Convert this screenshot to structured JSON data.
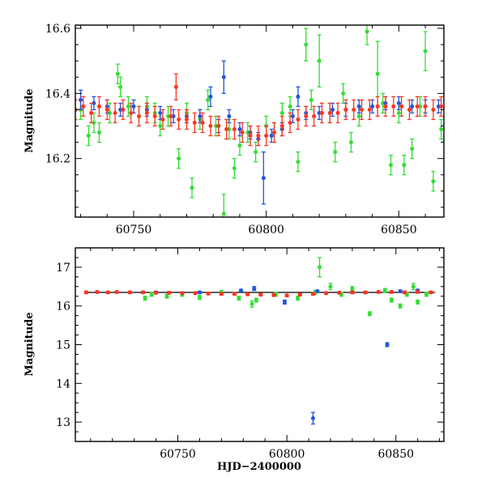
{
  "chart_data": [
    {
      "type": "scatter",
      "xlabel": "",
      "ylabel": "Magnitude",
      "xlim": [
        60728,
        60867
      ],
      "ylim": [
        16.61,
        16.02
      ],
      "x_ticks": [
        60750,
        60800,
        60850
      ],
      "x_tick_labels": [
        "60750",
        "60800",
        "60850"
      ],
      "y_ticks": [
        16.2,
        16.4,
        16.6
      ],
      "y_tick_labels": [
        "16.2",
        "16.4",
        "16.6"
      ],
      "y_inverted": true,
      "series": [
        {
          "color": "#33dd33",
          "points": [
            [
              60730,
              16.35,
              0.03
            ],
            [
              60733,
              16.27,
              0.03
            ],
            [
              60735,
              16.31,
              0.03
            ],
            [
              60737,
              16.28,
              0.03
            ],
            [
              60741,
              16.34,
              0.03
            ],
            [
              60744,
              16.46,
              0.03
            ],
            [
              60745,
              16.42,
              0.03
            ],
            [
              60748,
              16.36,
              0.03
            ],
            [
              60752,
              16.33,
              0.03
            ],
            [
              60755,
              16.36,
              0.03
            ],
            [
              60758,
              16.34,
              0.03
            ],
            [
              60760,
              16.3,
              0.03
            ],
            [
              60763,
              16.33,
              0.03
            ],
            [
              60767,
              16.2,
              0.03
            ],
            [
              60770,
              16.34,
              0.03
            ],
            [
              60772,
              16.11,
              0.03
            ],
            [
              60775,
              16.32,
              0.03
            ],
            [
              60778,
              16.38,
              0.03
            ],
            [
              60781,
              16.3,
              0.03
            ],
            [
              60784,
              16.03,
              0.06
            ],
            [
              60786,
              16.29,
              0.03
            ],
            [
              60788,
              16.17,
              0.03
            ],
            [
              60790,
              16.24,
              0.03
            ],
            [
              60793,
              16.28,
              0.03
            ],
            [
              60796,
              16.22,
              0.03
            ],
            [
              60800,
              16.3,
              0.03
            ],
            [
              60803,
              16.28,
              0.03
            ],
            [
              60806,
              16.34,
              0.03
            ],
            [
              60809,
              16.36,
              0.03
            ],
            [
              60812,
              16.19,
              0.03
            ],
            [
              60815,
              16.55,
              0.05
            ],
            [
              60817,
              16.38,
              0.03
            ],
            [
              60820,
              16.5,
              0.08
            ],
            [
              60824,
              16.34,
              0.03
            ],
            [
              60826,
              16.22,
              0.03
            ],
            [
              60829,
              16.4,
              0.03
            ],
            [
              60832,
              16.25,
              0.03
            ],
            [
              60835,
              16.33,
              0.03
            ],
            [
              60838,
              16.59,
              0.04
            ],
            [
              60842,
              16.46,
              0.1
            ],
            [
              60844,
              16.37,
              0.03
            ],
            [
              60847,
              16.18,
              0.03
            ],
            [
              60850,
              16.34,
              0.03
            ],
            [
              60852,
              16.18,
              0.03
            ],
            [
              60855,
              16.23,
              0.03
            ],
            [
              60858,
              16.36,
              0.03
            ],
            [
              60860,
              16.53,
              0.06
            ],
            [
              60863,
              16.13,
              0.03
            ],
            [
              60866,
              16.29,
              0.03
            ]
          ]
        },
        {
          "color": "#2255dd",
          "points": [
            [
              60730,
              16.38,
              0.03
            ],
            [
              60735,
              16.37,
              0.02
            ],
            [
              60740,
              16.36,
              0.02
            ],
            [
              60745,
              16.35,
              0.02
            ],
            [
              60750,
              16.36,
              0.02
            ],
            [
              60755,
              16.35,
              0.02
            ],
            [
              60760,
              16.34,
              0.02
            ],
            [
              60765,
              16.33,
              0.02
            ],
            [
              60770,
              16.33,
              0.02
            ],
            [
              60775,
              16.33,
              0.02
            ],
            [
              60779,
              16.39,
              0.03
            ],
            [
              60782,
              16.3,
              0.02
            ],
            [
              60784,
              16.45,
              0.05
            ],
            [
              60786,
              16.33,
              0.02
            ],
            [
              60790,
              16.29,
              0.02
            ],
            [
              60794,
              16.28,
              0.02
            ],
            [
              60797,
              16.26,
              0.02
            ],
            [
              60799,
              16.14,
              0.08
            ],
            [
              60802,
              16.27,
              0.02
            ],
            [
              60806,
              16.29,
              0.02
            ],
            [
              60810,
              16.33,
              0.02
            ],
            [
              60812,
              16.39,
              0.03
            ],
            [
              60815,
              16.34,
              0.02
            ],
            [
              60820,
              16.34,
              0.02
            ],
            [
              60825,
              16.35,
              0.02
            ],
            [
              60830,
              16.35,
              0.02
            ],
            [
              60835,
              16.36,
              0.02
            ],
            [
              60840,
              16.36,
              0.02
            ],
            [
              60845,
              16.37,
              0.02
            ],
            [
              60850,
              16.37,
              0.02
            ],
            [
              60855,
              16.36,
              0.02
            ],
            [
              60860,
              16.36,
              0.02
            ],
            [
              60865,
              16.36,
              0.02
            ]
          ]
        },
        {
          "color": "#ff3322",
          "points": [
            [
              60728,
              16.35,
              0.03
            ],
            [
              60731,
              16.36,
              0.03
            ],
            [
              60734,
              16.34,
              0.03
            ],
            [
              60737,
              16.36,
              0.03
            ],
            [
              60740,
              16.35,
              0.03
            ],
            [
              60743,
              16.34,
              0.03
            ],
            [
              60746,
              16.35,
              0.03
            ],
            [
              60749,
              16.34,
              0.03
            ],
            [
              60752,
              16.33,
              0.03
            ],
            [
              60755,
              16.34,
              0.03
            ],
            [
              60758,
              16.33,
              0.03
            ],
            [
              60761,
              16.32,
              0.03
            ],
            [
              60764,
              16.33,
              0.03
            ],
            [
              60766,
              16.42,
              0.04
            ],
            [
              60767,
              16.32,
              0.03
            ],
            [
              60770,
              16.32,
              0.03
            ],
            [
              60773,
              16.31,
              0.03
            ],
            [
              60776,
              16.31,
              0.03
            ],
            [
              60779,
              16.3,
              0.03
            ],
            [
              60782,
              16.3,
              0.03
            ],
            [
              60785,
              16.29,
              0.03
            ],
            [
              60788,
              16.29,
              0.03
            ],
            [
              60791,
              16.28,
              0.03
            ],
            [
              60794,
              16.27,
              0.03
            ],
            [
              60797,
              16.27,
              0.03
            ],
            [
              60800,
              16.27,
              0.03
            ],
            [
              60803,
              16.28,
              0.03
            ],
            [
              60806,
              16.3,
              0.03
            ],
            [
              60809,
              16.31,
              0.03
            ],
            [
              60812,
              16.32,
              0.03
            ],
            [
              60815,
              16.33,
              0.03
            ],
            [
              60818,
              16.33,
              0.03
            ],
            [
              60821,
              16.34,
              0.03
            ],
            [
              60824,
              16.34,
              0.03
            ],
            [
              60827,
              16.34,
              0.03
            ],
            [
              60830,
              16.35,
              0.03
            ],
            [
              60833,
              16.35,
              0.03
            ],
            [
              60836,
              16.35,
              0.03
            ],
            [
              60839,
              16.35,
              0.03
            ],
            [
              60842,
              16.36,
              0.03
            ],
            [
              60845,
              16.36,
              0.03
            ],
            [
              60848,
              16.36,
              0.03
            ],
            [
              60851,
              16.36,
              0.03
            ],
            [
              60854,
              16.35,
              0.03
            ],
            [
              60857,
              16.36,
              0.03
            ],
            [
              60860,
              16.36,
              0.03
            ],
            [
              60863,
              16.35,
              0.03
            ],
            [
              60866,
              16.36,
              0.03
            ]
          ]
        }
      ]
    },
    {
      "type": "scatter",
      "xlabel": "HJD−2400000",
      "ylabel": "Magnitude",
      "xlim": [
        60703,
        60872
      ],
      "ylim": [
        17.5,
        12.5
      ],
      "x_ticks": [
        60750,
        60800,
        60850
      ],
      "x_tick_labels": [
        "60750",
        "60800",
        "60850"
      ],
      "y_ticks": [
        13,
        14,
        15,
        16,
        17
      ],
      "y_tick_labels": [
        "13",
        "14",
        "15",
        "16",
        "17"
      ],
      "y_inverted": true,
      "reference_line": {
        "y": 16.35,
        "x_range": [
          60708,
          60868
        ],
        "color": "#000000"
      },
      "series": [
        {
          "color": "#33dd33",
          "points": [
            [
              60735,
              16.2,
              0.05
            ],
            [
              60738,
              16.3,
              0.05
            ],
            [
              60745,
              16.25,
              0.05
            ],
            [
              60752,
              16.3,
              0.05
            ],
            [
              60760,
              16.22,
              0.05
            ],
            [
              60770,
              16.35,
              0.05
            ],
            [
              60778,
              16.2,
              0.05
            ],
            [
              60784,
              16.05,
              0.08
            ],
            [
              60786,
              16.15,
              0.05
            ],
            [
              60795,
              16.3,
              0.05
            ],
            [
              60805,
              16.2,
              0.05
            ],
            [
              60813,
              16.35,
              0.05
            ],
            [
              60815,
              17.0,
              0.25
            ],
            [
              60820,
              16.5,
              0.08
            ],
            [
              60825,
              16.3,
              0.05
            ],
            [
              60830,
              16.45,
              0.05
            ],
            [
              60838,
              15.8,
              0.05
            ],
            [
              60845,
              16.4,
              0.05
            ],
            [
              60848,
              16.15,
              0.05
            ],
            [
              60852,
              16.0,
              0.05
            ],
            [
              60855,
              16.3,
              0.05
            ],
            [
              60858,
              16.5,
              0.08
            ],
            [
              60860,
              16.1,
              0.05
            ],
            [
              60864,
              16.3,
              0.05
            ]
          ]
        },
        {
          "color": "#2255dd",
          "points": [
            [
              60740,
              16.35,
              0.03
            ],
            [
              60760,
              16.35,
              0.03
            ],
            [
              60779,
              16.4,
              0.03
            ],
            [
              60785,
              16.45,
              0.05
            ],
            [
              60799,
              16.1,
              0.05
            ],
            [
              60812,
              13.1,
              0.15
            ],
            [
              60814,
              16.38,
              0.03
            ],
            [
              60830,
              16.35,
              0.03
            ],
            [
              60846,
              15.0,
              0.05
            ],
            [
              60852,
              16.38,
              0.03
            ],
            [
              60860,
              16.4,
              0.03
            ]
          ]
        },
        {
          "color": "#ff3322",
          "points": [
            [
              60708,
              16.35,
              0.03
            ],
            [
              60713,
              16.36,
              0.03
            ],
            [
              60718,
              16.35,
              0.03
            ],
            [
              60722,
              16.36,
              0.03
            ],
            [
              60728,
              16.35,
              0.03
            ],
            [
              60734,
              16.35,
              0.03
            ],
            [
              60740,
              16.34,
              0.03
            ],
            [
              60746,
              16.34,
              0.03
            ],
            [
              60752,
              16.33,
              0.03
            ],
            [
              60758,
              16.33,
              0.03
            ],
            [
              60764,
              16.32,
              0.03
            ],
            [
              60770,
              16.31,
              0.03
            ],
            [
              60776,
              16.31,
              0.03
            ],
            [
              60782,
              16.3,
              0.03
            ],
            [
              60788,
              16.29,
              0.03
            ],
            [
              60794,
              16.28,
              0.03
            ],
            [
              60800,
              16.27,
              0.03
            ],
            [
              60806,
              16.29,
              0.03
            ],
            [
              60812,
              16.31,
              0.03
            ],
            [
              60818,
              16.33,
              0.03
            ],
            [
              60824,
              16.34,
              0.03
            ],
            [
              60830,
              16.35,
              0.03
            ],
            [
              60836,
              16.35,
              0.03
            ],
            [
              60842,
              16.36,
              0.03
            ],
            [
              60848,
              16.36,
              0.03
            ],
            [
              60854,
              16.35,
              0.03
            ],
            [
              60860,
              16.36,
              0.03
            ],
            [
              60866,
              16.35,
              0.03
            ]
          ]
        }
      ]
    }
  ]
}
